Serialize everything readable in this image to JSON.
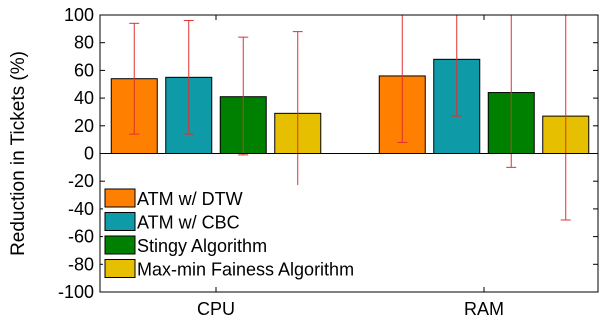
{
  "chart_data": {
    "type": "bar",
    "categories": [
      "CPU",
      "RAM"
    ],
    "ylabel": "Reduction in Tickets (%)",
    "xlabel": "",
    "title": "",
    "ylim": [
      -100,
      100
    ],
    "yticks": [
      100,
      80,
      60,
      40,
      20,
      0,
      -20,
      -40,
      -60,
      -80,
      -100
    ],
    "grid": false,
    "legend_position": "bottom-left",
    "error_bar_color": "#e03030",
    "series": [
      {
        "name": "ATM w/ DTW",
        "color": "#ff8000",
        "values": [
          54,
          56
        ],
        "error_low": [
          14,
          8
        ],
        "error_high": [
          94,
          100
        ]
      },
      {
        "name": "ATM w/ CBC",
        "color": "#0e9aa7",
        "values": [
          55,
          68
        ],
        "error_low": [
          14,
          27
        ],
        "error_high": [
          96,
          100
        ]
      },
      {
        "name": "Stingy Algorithm",
        "color": "#008000",
        "values": [
          41,
          44
        ],
        "error_low": [
          -1,
          -10
        ],
        "error_high": [
          84,
          100
        ]
      },
      {
        "name": "Max-min Faine​ss Algorithm",
        "color": "#e6c000",
        "values": [
          29,
          27
        ],
        "error_low": [
          -30,
          -48
        ],
        "error_high": [
          88,
          100
        ]
      }
    ]
  }
}
